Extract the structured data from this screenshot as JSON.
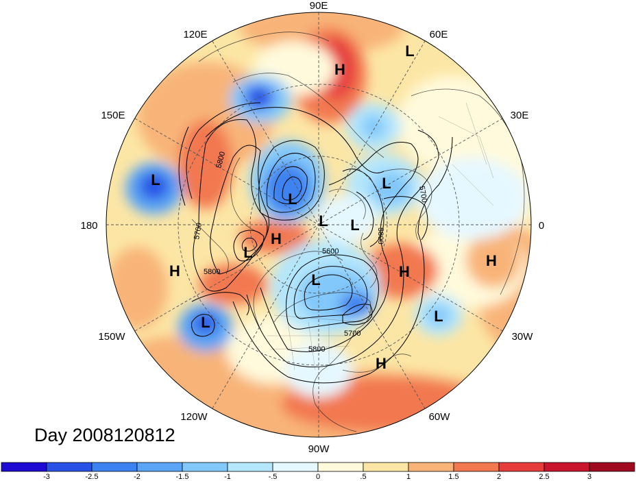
{
  "title": "Day 2008120812",
  "longitude_labels": [
    "90E",
    "60E",
    "30E",
    "0",
    "30W",
    "60W",
    "90W",
    "120W",
    "150W",
    "180",
    "150E",
    "120E"
  ],
  "contour_labels": [
    "5800",
    "5700",
    "5800",
    "5700",
    "5800",
    "5600",
    "5700",
    "5800"
  ],
  "pressure_centers": [
    {
      "type": "H",
      "name": "h-siberia"
    },
    {
      "type": "L",
      "name": "l-kara"
    },
    {
      "type": "L",
      "name": "l-pacific-west"
    },
    {
      "type": "L",
      "name": "l-east-siberia"
    },
    {
      "type": "L",
      "name": "l-scandinavia"
    },
    {
      "type": "L",
      "name": "l-arctic-1"
    },
    {
      "type": "L",
      "name": "l-arctic-2"
    },
    {
      "type": "H",
      "name": "h-beaufort"
    },
    {
      "type": "L",
      "name": "l-alaska"
    },
    {
      "type": "H",
      "name": "h-pacific"
    },
    {
      "type": "L",
      "name": "l-hudson"
    },
    {
      "type": "H",
      "name": "h-atlantic-north"
    },
    {
      "type": "H",
      "name": "h-africa"
    },
    {
      "type": "L",
      "name": "l-atlantic"
    },
    {
      "type": "L",
      "name": "l-pacific-east"
    },
    {
      "type": "H",
      "name": "h-caribbean"
    }
  ],
  "colorbar": {
    "tick_labels": [
      "-3",
      "-2.5",
      "-2",
      "-1.5",
      "-1",
      "-.5",
      "0",
      ".5",
      "1",
      "1.5",
      "2",
      "2.5",
      "3"
    ],
    "colors": [
      "#1e0ad2",
      "#2852e6",
      "#3c82f0",
      "#5aa5f5",
      "#82c8fa",
      "#b4e6fc",
      "#e6f8ff",
      "#fffadc",
      "#fce6a5",
      "#f8b478",
      "#f27850",
      "#e63c3c",
      "#c8142d",
      "#a00a1e"
    ]
  }
}
